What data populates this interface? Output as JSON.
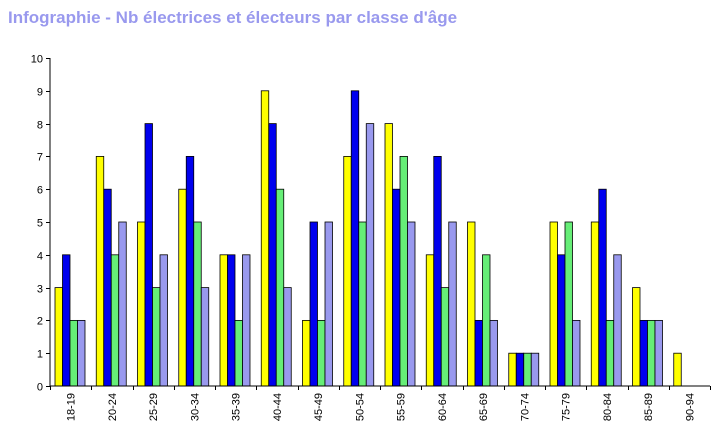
{
  "title": "Infographie - Nb électrices et électeurs par classe d'âge",
  "colors": {
    "title": "#9999ee",
    "series": [
      "#ffff00",
      "#0000ee",
      "#66ee77",
      "#9999ee"
    ],
    "axis": "#000000",
    "bar_outline": "#000000"
  },
  "chart_data": {
    "type": "bar",
    "title": "Infographie - Nb électrices et électeurs par classe d'âge",
    "xlabel": "",
    "ylabel": "",
    "ylim": [
      0,
      10
    ],
    "yticks": [
      0,
      1,
      2,
      3,
      4,
      5,
      6,
      7,
      8,
      9,
      10
    ],
    "grid": false,
    "legend": "none",
    "categories": [
      "18-19",
      "20-24",
      "25-29",
      "30-34",
      "35-39",
      "40-44",
      "45-49",
      "50-54",
      "55-59",
      "60-64",
      "65-69",
      "70-74",
      "75-79",
      "80-84",
      "85-89",
      "90-94"
    ],
    "series": [
      {
        "values": [
          3,
          7,
          5,
          6,
          4,
          9,
          2,
          7,
          8,
          4,
          5,
          1,
          5,
          5,
          3,
          1
        ],
        "color": "#ffff00"
      },
      {
        "values": [
          4,
          6,
          8,
          7,
          4,
          8,
          5,
          9,
          6,
          7,
          2,
          1,
          4,
          6,
          2,
          0
        ],
        "color": "#0000ee"
      },
      {
        "values": [
          2,
          4,
          3,
          5,
          2,
          6,
          2,
          5,
          7,
          3,
          4,
          1,
          5,
          2,
          2,
          0
        ],
        "color": "#66ee77"
      },
      {
        "values": [
          2,
          5,
          4,
          3,
          4,
          3,
          5,
          8,
          5,
          5,
          2,
          1,
          2,
          4,
          2,
          0
        ],
        "color": "#9999ee"
      }
    ]
  }
}
